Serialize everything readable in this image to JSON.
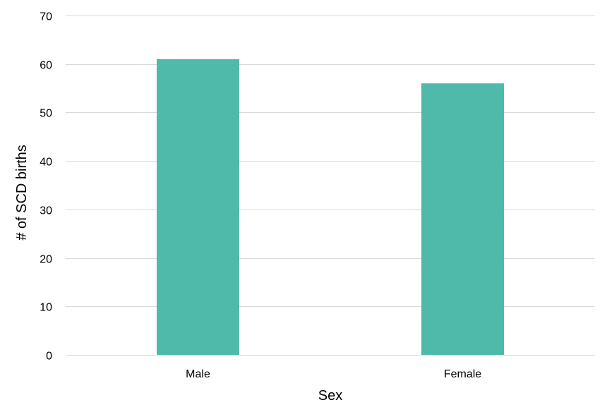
{
  "chart_data": {
    "type": "bar",
    "title": "",
    "xlabel": "Sex",
    "ylabel": "# of SCD births",
    "categories": [
      "Male",
      "Female"
    ],
    "series": [
      {
        "values": [
          61,
          56
        ],
        "color": "#4fb9aa"
      }
    ],
    "ylim": [
      0,
      70
    ],
    "yticks": [
      0,
      10,
      20,
      30,
      40,
      50,
      60,
      70
    ],
    "grid": true,
    "legend": "none"
  },
  "colors": {
    "bar": "#4fb9aa",
    "grid": "#d9d9d9",
    "text": "#000000",
    "background": "#ffffff"
  }
}
